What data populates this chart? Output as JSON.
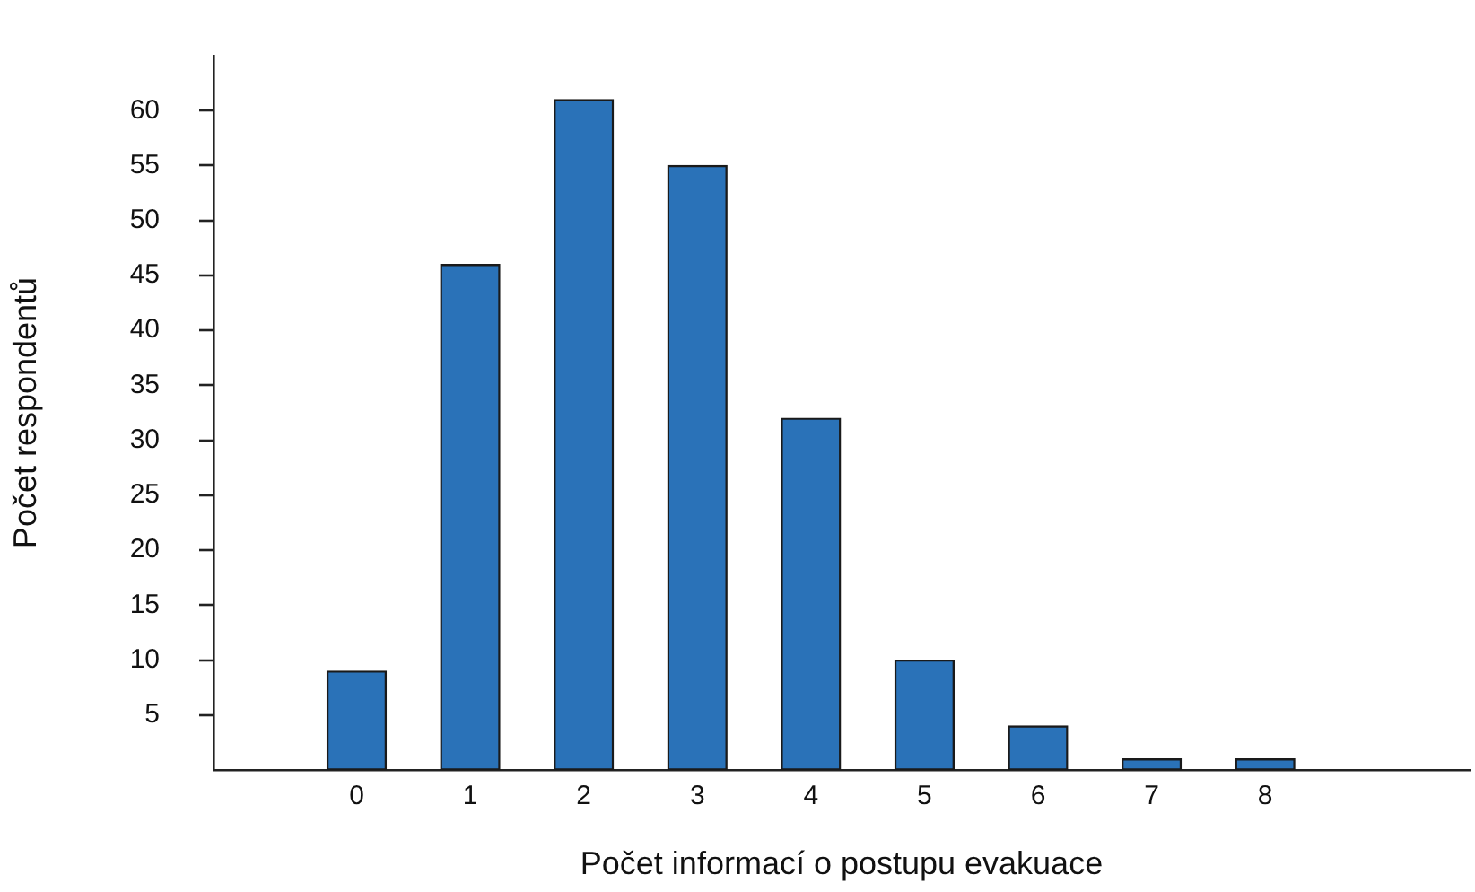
{
  "chart_data": {
    "type": "bar",
    "xlabel": "Počet informací o postupu evakuace",
    "ylabel": "Počet respondentů",
    "x": [
      0,
      1,
      2,
      3,
      4,
      5,
      6,
      7,
      8
    ],
    "values": [
      9,
      46,
      61,
      55,
      32,
      10,
      4,
      1,
      1
    ],
    "color": "#2a72b8",
    "xlim": [
      -1.26,
      9.8
    ],
    "xticks": [
      0,
      1,
      2,
      3,
      4,
      5,
      6,
      7,
      8
    ],
    "ylim": [
      0,
      65
    ],
    "yticks": [
      5,
      10,
      15,
      20,
      25,
      30,
      35,
      40,
      45,
      50,
      55,
      60
    ],
    "grid": false,
    "legend": false
  }
}
